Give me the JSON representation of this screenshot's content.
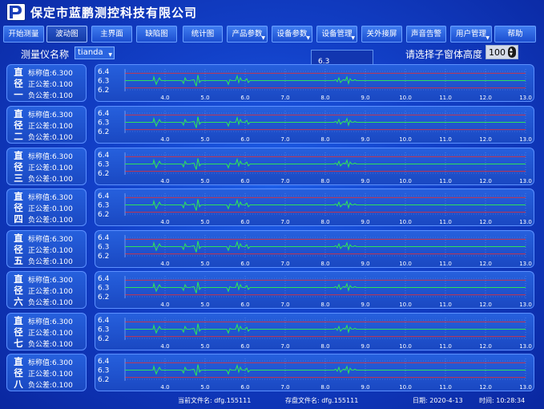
{
  "app": {
    "company": "保定市蓝鹏测控科技有限公司",
    "logo_text": "LP"
  },
  "nav": [
    {
      "label": "开始测量",
      "dropdown": false,
      "active": false
    },
    {
      "label": "波动图",
      "dropdown": false,
      "active": true
    },
    {
      "label": "主界面",
      "dropdown": false,
      "active": false
    },
    {
      "label": "缺陷图",
      "dropdown": false,
      "active": false
    },
    {
      "label": "统计图",
      "dropdown": false,
      "active": false
    },
    {
      "label": "产品参数",
      "dropdown": true,
      "active": false
    },
    {
      "label": "设备参数",
      "dropdown": true,
      "active": false
    },
    {
      "label": "设备管理",
      "dropdown": true,
      "active": false
    },
    {
      "label": "关外接屏",
      "dropdown": false,
      "active": false
    },
    {
      "label": "声音告警",
      "dropdown": false,
      "active": false
    },
    {
      "label": "用户管理",
      "dropdown": true,
      "active": false
    },
    {
      "label": "帮助",
      "dropdown": false,
      "active": false
    }
  ],
  "toolbar": {
    "meter_label": "测量仪名称",
    "meter_value": "tianda",
    "height_label": "请选择子窗体高度",
    "height_value": "100"
  },
  "tooltip": {
    "value": "6.3"
  },
  "panels": [
    {
      "char1": "直",
      "char2": "径",
      "char3": "一",
      "nominal": "标称值:6.300",
      "upper": "正公差:0.100",
      "lower": "负公差:0.100"
    },
    {
      "char1": "直",
      "char2": "径",
      "char3": "二",
      "nominal": "标称值:6.300",
      "upper": "正公差:0.100",
      "lower": "负公差:0.100"
    },
    {
      "char1": "直",
      "char2": "径",
      "char3": "三",
      "nominal": "标称值:6.300",
      "upper": "正公差:0.100",
      "lower": "负公差:0.100"
    },
    {
      "char1": "直",
      "char2": "径",
      "char3": "四",
      "nominal": "标称值:6.300",
      "upper": "正公差:0.100",
      "lower": "负公差:0.100"
    },
    {
      "char1": "直",
      "char2": "径",
      "char3": "五",
      "nominal": "标称值:6.300",
      "upper": "正公差:0.100",
      "lower": "负公差:0.100"
    },
    {
      "char1": "直",
      "char2": "径",
      "char3": "六",
      "nominal": "标称值:6.300",
      "upper": "正公差:0.100",
      "lower": "负公差:0.100"
    },
    {
      "char1": "直",
      "char2": "径",
      "char3": "七",
      "nominal": "标称值:6.300",
      "upper": "正公差:0.100",
      "lower": "负公差:0.100"
    },
    {
      "char1": "直",
      "char2": "径",
      "char3": "八",
      "nominal": "标称值:6.300",
      "upper": "正公差:0.100",
      "lower": "负公差:0.100"
    }
  ],
  "chart_data": {
    "type": "line",
    "series_count": 8,
    "ylim": [
      6.2,
      6.4
    ],
    "yticks": [
      "6.4",
      "6.3",
      "6.2"
    ],
    "xlim": [
      3.0,
      13.0
    ],
    "xticks": [
      "4.0",
      "5.0",
      "6.0",
      "7.0",
      "8.0",
      "9.0",
      "10.0",
      "11.0",
      "12.0",
      "13.0"
    ],
    "grid": true,
    "line_color": "#2ee05a",
    "limit_line_color": "#e0303a",
    "x": [
      3.0,
      3.6,
      3.7,
      3.72,
      3.78,
      3.82,
      3.86,
      3.9,
      4.3,
      4.42,
      4.46,
      4.5,
      4.54,
      4.58,
      4.62,
      4.72,
      4.78,
      4.82,
      4.86,
      4.9,
      4.94,
      4.98,
      5.5,
      5.54,
      5.58,
      5.62,
      5.66,
      5.7,
      5.76,
      5.8,
      5.84,
      5.88,
      5.92,
      5.96,
      6.0,
      6.04,
      6.08,
      6.12,
      8.22,
      8.26,
      8.3,
      8.34,
      8.38,
      8.42,
      8.46,
      8.5,
      8.54,
      8.58,
      8.62,
      8.66,
      8.7,
      8.74,
      8.78,
      13.0
    ],
    "y": [
      6.3,
      6.3,
      6.3,
      6.34,
      6.26,
      6.3,
      6.33,
      6.3,
      6.3,
      6.3,
      6.27,
      6.33,
      6.3,
      6.3,
      6.3,
      6.31,
      6.24,
      6.36,
      6.28,
      6.3,
      6.3,
      6.3,
      6.3,
      6.3,
      6.26,
      6.31,
      6.3,
      6.3,
      6.3,
      6.35,
      6.28,
      6.33,
      6.3,
      6.3,
      6.3,
      6.32,
      6.28,
      6.3,
      6.3,
      6.31,
      6.29,
      6.33,
      6.28,
      6.3,
      6.31,
      6.3,
      6.34,
      6.27,
      6.32,
      6.3,
      6.3,
      6.31,
      6.3,
      6.3
    ]
  },
  "status": {
    "current_file": "当前文件名: dfg.155111",
    "saved_file": "存盘文件名: dfg.155111",
    "date": "日期: 2020-4-13",
    "time": "时间: 10:28:34"
  },
  "colors": {
    "background": "#1446cf",
    "panel": "#2260dd",
    "border": "#5c90ff",
    "trace": "#2ee05a",
    "limit": "#e0303a"
  }
}
